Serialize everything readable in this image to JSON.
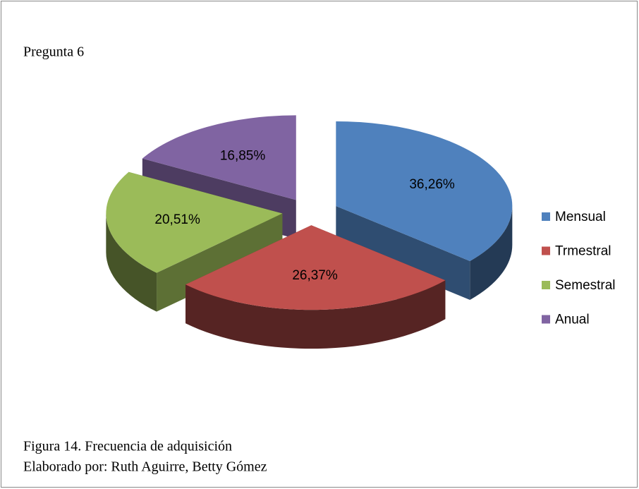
{
  "chart_data": {
    "type": "pie",
    "title": "Pregunta 6",
    "categories": [
      "Mensual",
      "Trmestral",
      "Semestral",
      "Anual"
    ],
    "values": [
      36.26,
      26.37,
      20.51,
      16.85
    ],
    "value_labels": [
      "36,26%",
      "26,37%",
      "20,51%",
      "16,85%"
    ],
    "colors": [
      "#4f81bd",
      "#c0504d",
      "#9bbb59",
      "#8064a2"
    ],
    "legend": "right"
  },
  "caption": [
    "Figura 14. Frecuencia de adquisición",
    "Elaborado por: Ruth Aguirre, Betty Gómez"
  ]
}
